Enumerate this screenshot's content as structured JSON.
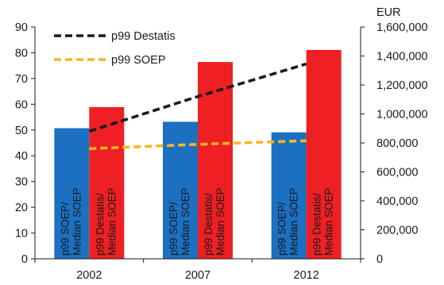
{
  "chart_data": {
    "type": "bar",
    "categories": [
      "2002",
      "2007",
      "2012"
    ],
    "series": [
      {
        "name": "p99 SOEP/ Median SOEP",
        "axis": "left",
        "kind": "bar",
        "color": "#1b70c2",
        "values": [
          50.7,
          53.2,
          49.1
        ]
      },
      {
        "name": "p99 Destatis/ Median SOEP",
        "axis": "left",
        "kind": "bar",
        "color": "#ee2024",
        "values": [
          58.9,
          76.4,
          81.1
        ]
      },
      {
        "name": "p99 Destatis",
        "axis": "right",
        "kind": "line",
        "style": "dashed",
        "color": "#1a1a1a",
        "values": [
          880000,
          1120000,
          1345000
        ]
      },
      {
        "name": "p99 SOEP",
        "axis": "right",
        "kind": "line",
        "style": "dashed",
        "color": "#f8b81c",
        "values": [
          760000,
          790000,
          815000
        ]
      }
    ],
    "bar_labels": [
      [
        "p99 SOEP/",
        "Median SOEP"
      ],
      [
        "p99 Destatis/",
        "Median SOEP"
      ]
    ],
    "left_axis": {
      "min": 0,
      "max": 90,
      "ticks": [
        "0",
        "10",
        "20",
        "30",
        "40",
        "50",
        "60",
        "70",
        "80",
        "90"
      ]
    },
    "right_axis": {
      "min": 0,
      "max": 1600000,
      "unit_label": "EUR",
      "ticks": [
        "0",
        "200,000",
        "400,000",
        "600,000",
        "800,000",
        "1,000,000",
        "1,200,000",
        "1,400,000",
        "1,600,000"
      ]
    },
    "legend": {
      "position": "top-left",
      "items": [
        "p99 Destatis",
        "p99 SOEP"
      ]
    },
    "grid": false
  }
}
